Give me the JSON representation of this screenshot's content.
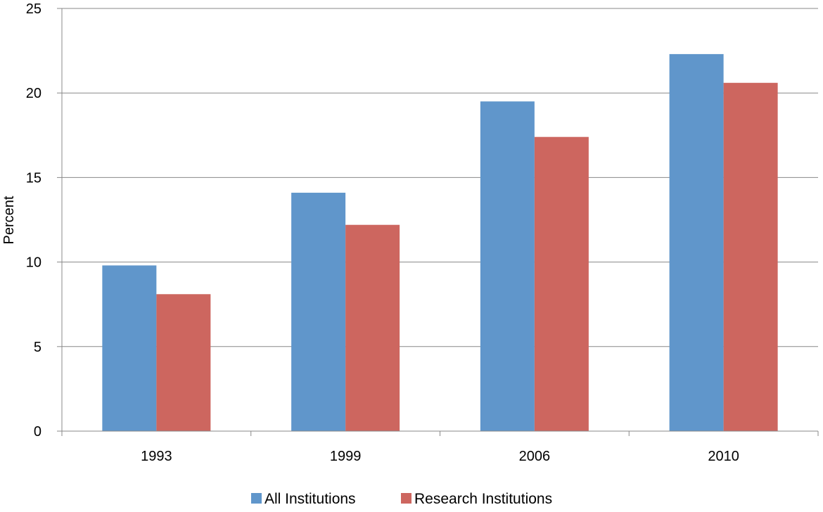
{
  "chart_data": {
    "type": "bar",
    "title": "",
    "xlabel": "",
    "ylabel": "Percent",
    "categories": [
      "1993",
      "1999",
      "2006",
      "2010"
    ],
    "series": [
      {
        "name": "All Institutions",
        "color": "#6096cb",
        "values": [
          9.8,
          14.1,
          19.5,
          22.3
        ]
      },
      {
        "name": "Research Institutions",
        "color": "#cd665f",
        "values": [
          8.1,
          12.2,
          17.4,
          20.6
        ]
      }
    ],
    "ylim": [
      0,
      25
    ],
    "yticks": [
      "0",
      "5",
      "10",
      "15",
      "20",
      "25"
    ],
    "grid": true,
    "gridline_color": "#888888",
    "legend_position": "bottom"
  }
}
